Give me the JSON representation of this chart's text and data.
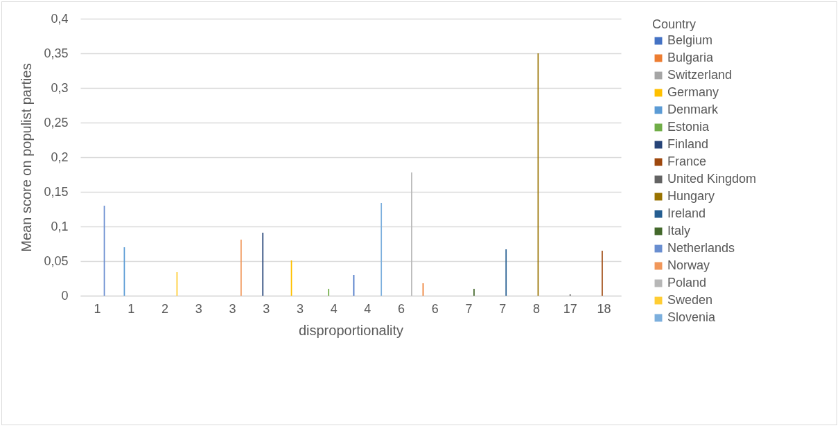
{
  "chart_data": {
    "type": "bar",
    "xlabel": "disproportionality",
    "ylabel": "Mean score on  populist parties",
    "legend_title": "Country",
    "legend": "right",
    "grid": "y",
    "categories": [
      "1",
      "1",
      "2",
      "3",
      "3",
      "3",
      "3",
      "4",
      "4",
      "6",
      "6",
      "7",
      "7",
      "8",
      "17",
      "18"
    ],
    "ylim": [
      0,
      0.4
    ],
    "yticks": [
      0,
      {
        "value": 0.05,
        "label": "0,05"
      },
      {
        "value": 0.1,
        "label": "0,1"
      },
      {
        "value": 0.15,
        "label": "0,15"
      },
      {
        "value": 0.2,
        "label": "0,2"
      },
      {
        "value": 0.25,
        "label": "0,25"
      },
      {
        "value": 0.3,
        "label": "0,3"
      },
      {
        "value": 0.35,
        "label": "0,35"
      },
      {
        "value": 0.4,
        "label": "0,4"
      }
    ],
    "series": [
      {
        "name": "Belgium",
        "color": "#4472c4",
        "values": [
          null,
          null,
          null,
          null,
          null,
          null,
          null,
          null,
          0.03,
          null,
          null,
          null,
          null,
          null,
          null,
          null
        ]
      },
      {
        "name": "Bulgaria",
        "color": "#ed7d31",
        "values": [
          null,
          null,
          null,
          null,
          null,
          null,
          null,
          null,
          null,
          null,
          0.018,
          null,
          null,
          null,
          null,
          null
        ]
      },
      {
        "name": "Switzerland",
        "color": "#a5a5a5",
        "values": [
          null,
          null,
          null,
          null,
          null,
          null,
          null,
          null,
          null,
          null,
          null,
          null,
          null,
          null,
          null,
          null
        ]
      },
      {
        "name": "Germany",
        "color": "#ffc000",
        "values": [
          null,
          null,
          null,
          null,
          null,
          null,
          0.051,
          null,
          null,
          null,
          null,
          null,
          null,
          null,
          null,
          null
        ]
      },
      {
        "name": "Denmark",
        "color": "#5b9bd5",
        "values": [
          null,
          0.07,
          null,
          null,
          null,
          null,
          null,
          null,
          null,
          null,
          null,
          null,
          null,
          null,
          null,
          null
        ]
      },
      {
        "name": "Estonia",
        "color": "#70ad47",
        "values": [
          null,
          null,
          null,
          null,
          null,
          null,
          null,
          0.01,
          null,
          null,
          null,
          null,
          null,
          null,
          null,
          null
        ]
      },
      {
        "name": "Finland",
        "color": "#264478",
        "values": [
          null,
          null,
          null,
          null,
          null,
          0.091,
          null,
          null,
          null,
          null,
          null,
          null,
          null,
          null,
          null,
          null
        ]
      },
      {
        "name": "France",
        "color": "#9e480e",
        "values": [
          null,
          null,
          null,
          null,
          null,
          null,
          null,
          null,
          null,
          null,
          null,
          null,
          null,
          null,
          null,
          0.065
        ]
      },
      {
        "name": "United Kingdom",
        "color": "#636363",
        "values": [
          null,
          null,
          null,
          null,
          null,
          null,
          null,
          null,
          null,
          null,
          null,
          null,
          null,
          null,
          0.002,
          null
        ]
      },
      {
        "name": "Hungary",
        "color": "#997300",
        "values": [
          null,
          null,
          null,
          null,
          null,
          null,
          null,
          null,
          null,
          null,
          null,
          null,
          null,
          0.35,
          null,
          null
        ]
      },
      {
        "name": "Ireland",
        "color": "#255e91",
        "values": [
          null,
          null,
          null,
          null,
          null,
          null,
          null,
          null,
          null,
          null,
          null,
          null,
          0.067,
          null,
          null,
          null
        ]
      },
      {
        "name": "Italy",
        "color": "#43682b",
        "values": [
          null,
          null,
          null,
          null,
          null,
          null,
          null,
          null,
          null,
          null,
          null,
          0.01,
          null,
          null,
          null,
          null
        ]
      },
      {
        "name": "Netherlands",
        "color": "#698ed0",
        "values": [
          0.13,
          null,
          null,
          null,
          null,
          null,
          null,
          null,
          null,
          null,
          null,
          null,
          null,
          null,
          null,
          null
        ]
      },
      {
        "name": "Norway",
        "color": "#f1975a",
        "values": [
          null,
          null,
          null,
          null,
          0.081,
          null,
          null,
          null,
          null,
          null,
          null,
          null,
          null,
          null,
          null,
          null
        ]
      },
      {
        "name": "Poland",
        "color": "#b7b7b7",
        "values": [
          null,
          null,
          null,
          null,
          null,
          null,
          null,
          null,
          null,
          0.178,
          null,
          null,
          null,
          null,
          null,
          null
        ]
      },
      {
        "name": "Sweden",
        "color": "#ffcd33",
        "values": [
          null,
          null,
          0.034,
          null,
          null,
          null,
          null,
          null,
          null,
          null,
          null,
          null,
          null,
          null,
          null,
          null
        ]
      },
      {
        "name": "Slovenia",
        "color": "#7cafdd",
        "values": [
          null,
          null,
          null,
          null,
          null,
          null,
          null,
          null,
          0.134,
          null,
          null,
          null,
          null,
          null,
          null,
          null
        ]
      }
    ]
  }
}
